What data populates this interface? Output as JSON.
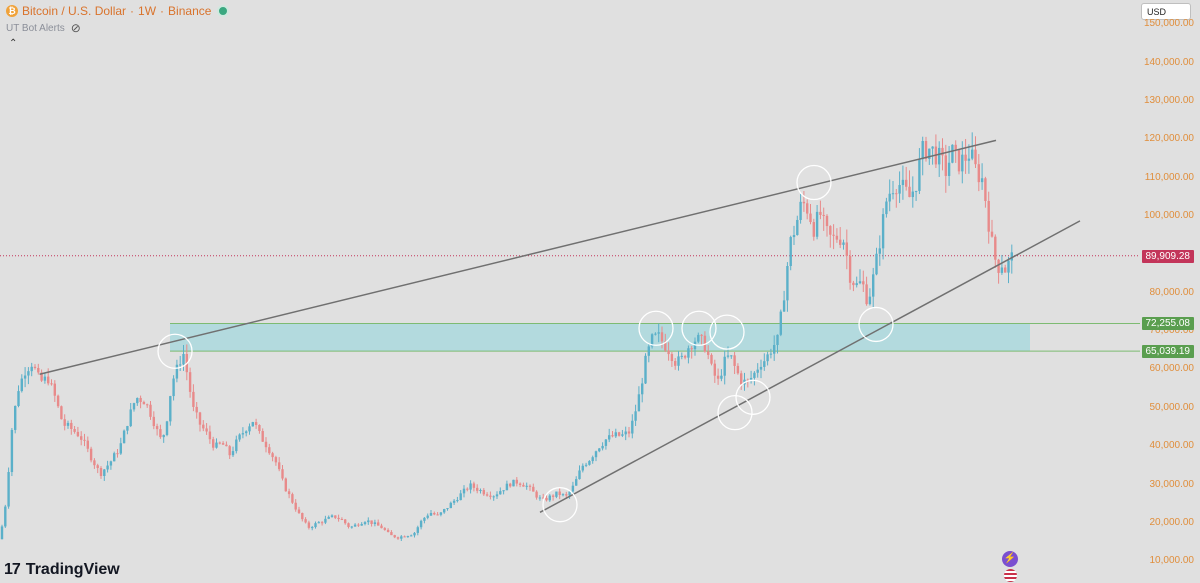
{
  "header": {
    "coin_symbol": "₿",
    "title": "Bitcoin / U.S. Dollar",
    "sep1": "·",
    "interval": "1W",
    "sep2": "·",
    "exchange": "Binance",
    "indicator": "UT Bot Alerts",
    "currency": "USD"
  },
  "price_ticks": [
    "150,000.00",
    "140,000.00",
    "130,000.00",
    "120,000.00",
    "110,000.00",
    "100,000.00",
    "80,000.00",
    "70,000.00",
    "60,000.00",
    "50,000.00",
    "40,000.00",
    "30,000.00",
    "20,000.00",
    "10,000.00"
  ],
  "price_tags": {
    "current": "89,909.28",
    "zone_top": "72,255.08",
    "zone_bottom": "65,039.19"
  },
  "brand": "TradingView",
  "colors": {
    "up": "#5bb0c9",
    "down": "#e88a8a",
    "zone": "#b3dade",
    "zone_line": "#7dbb72",
    "current": "#c3355a",
    "trendline": "#707070"
  },
  "chart_data": {
    "type": "candlestick",
    "symbol": "BTCUSD",
    "interval": "1W",
    "y_axis": {
      "min": 10000,
      "max": 150000
    },
    "current_price": 89909.28,
    "zone": {
      "top": 72255.08,
      "bottom": 65039.19
    },
    "trendlines": [
      {
        "name": "upper-resistance",
        "from": [
          0.033,
          59000
        ],
        "to": [
          0.83,
          120000
        ]
      },
      {
        "name": "lower-support",
        "from": [
          0.45,
          23000
        ],
        "to": [
          0.9,
          99000
        ]
      }
    ],
    "path": [
      [
        0,
        16000
      ],
      [
        6,
        26000
      ],
      [
        12,
        45000
      ],
      [
        18,
        55000
      ],
      [
        25,
        60000
      ],
      [
        32,
        62000
      ],
      [
        40,
        57000
      ],
      [
        48,
        58000
      ],
      [
        55,
        53000
      ],
      [
        63,
        46000
      ],
      [
        70,
        45000
      ],
      [
        80,
        43000
      ],
      [
        90,
        38000
      ],
      [
        100,
        33000
      ],
      [
        110,
        36000
      ],
      [
        120,
        40000
      ],
      [
        128,
        47000
      ],
      [
        136,
        53000
      ],
      [
        145,
        52000
      ],
      [
        152,
        48000
      ],
      [
        160,
        42000
      ],
      [
        165,
        44000
      ],
      [
        172,
        57000
      ],
      [
        178,
        61000
      ],
      [
        183,
        65000
      ],
      [
        188,
        58000
      ],
      [
        193,
        50000
      ],
      [
        200,
        46000
      ],
      [
        208,
        43000
      ],
      [
        215,
        40000
      ],
      [
        222,
        41000
      ],
      [
        230,
        38000
      ],
      [
        238,
        42000
      ],
      [
        246,
        45000
      ],
      [
        253,
        47000
      ],
      [
        260,
        43000
      ],
      [
        268,
        40000
      ],
      [
        276,
        36000
      ],
      [
        284,
        30000
      ],
      [
        292,
        26000
      ],
      [
        300,
        22000
      ],
      [
        308,
        19000
      ],
      [
        316,
        20000
      ],
      [
        325,
        21000
      ],
      [
        334,
        22000
      ],
      [
        342,
        21000
      ],
      [
        350,
        19000
      ],
      [
        358,
        20000
      ],
      [
        366,
        21000
      ],
      [
        374,
        20000
      ],
      [
        382,
        19000
      ],
      [
        390,
        17000
      ],
      [
        398,
        16500
      ],
      [
        406,
        17000
      ],
      [
        414,
        17500
      ],
      [
        422,
        21000
      ],
      [
        430,
        23000
      ],
      [
        438,
        22000
      ],
      [
        446,
        24000
      ],
      [
        454,
        26000
      ],
      [
        462,
        28000
      ],
      [
        470,
        30000
      ],
      [
        478,
        29000
      ],
      [
        486,
        28000
      ],
      [
        494,
        27500
      ],
      [
        502,
        29000
      ],
      [
        510,
        30500
      ],
      [
        518,
        31000
      ],
      [
        526,
        30000
      ],
      [
        534,
        28000
      ],
      [
        542,
        26000
      ],
      [
        550,
        27000
      ],
      [
        558,
        28000
      ],
      [
        566,
        27000
      ],
      [
        574,
        30000
      ],
      [
        582,
        35000
      ],
      [
        590,
        37000
      ],
      [
        598,
        40000
      ],
      [
        606,
        42000
      ],
      [
        614,
        43000
      ],
      [
        622,
        43000
      ],
      [
        630,
        44000
      ],
      [
        638,
        52000
      ],
      [
        646,
        63000
      ],
      [
        652,
        68000
      ],
      [
        658,
        69000
      ],
      [
        664,
        67000
      ],
      [
        670,
        65000
      ],
      [
        676,
        62000
      ],
      [
        682,
        63000
      ],
      [
        688,
        66000
      ],
      [
        694,
        68000
      ],
      [
        700,
        68000
      ],
      [
        706,
        66000
      ],
      [
        712,
        60000
      ],
      [
        718,
        57000
      ],
      [
        724,
        62000
      ],
      [
        730,
        64000
      ],
      [
        736,
        60000
      ],
      [
        742,
        57000
      ],
      [
        748,
        57000
      ],
      [
        754,
        59000
      ],
      [
        760,
        62000
      ],
      [
        766,
        63000
      ],
      [
        772,
        66000
      ],
      [
        778,
        68000
      ],
      [
        784,
        80000
      ],
      [
        790,
        93000
      ],
      [
        796,
        98000
      ],
      [
        802,
        104000
      ],
      [
        808,
        102000
      ],
      [
        814,
        97000
      ],
      [
        820,
        101000
      ],
      [
        826,
        96000
      ],
      [
        832,
        94000
      ],
      [
        838,
        95000
      ],
      [
        844,
        94000
      ],
      [
        850,
        85000
      ],
      [
        856,
        82000
      ],
      [
        862,
        83000
      ],
      [
        868,
        78000
      ],
      [
        874,
        85000
      ],
      [
        880,
        94000
      ],
      [
        886,
        104000
      ],
      [
        892,
        108000
      ],
      [
        898,
        109000
      ],
      [
        904,
        107000
      ],
      [
        910,
        105000
      ],
      [
        916,
        109000
      ],
      [
        922,
        117000
      ],
      [
        928,
        118000
      ],
      [
        934,
        117000
      ],
      [
        940,
        115000
      ],
      [
        946,
        112000
      ],
      [
        952,
        117000
      ],
      [
        958,
        114000
      ],
      [
        964,
        115000
      ],
      [
        970,
        117000
      ],
      [
        976,
        112000
      ],
      [
        982,
        110000
      ],
      [
        986,
        104000
      ],
      [
        990,
        96000
      ],
      [
        994,
        90000
      ],
      [
        998,
        87000
      ],
      [
        1002,
        88000
      ],
      [
        1006,
        86000
      ],
      [
        1010,
        89000
      ],
      [
        1014,
        89909
      ]
    ],
    "annotations": [
      {
        "type": "circle",
        "at": [
          175,
          65000
        ]
      },
      {
        "type": "circle",
        "at": [
          560,
          25000
        ]
      },
      {
        "type": "circle",
        "at": [
          656,
          71000
        ]
      },
      {
        "type": "circle",
        "at": [
          699,
          71000
        ]
      },
      {
        "type": "circle",
        "at": [
          727,
          70000
        ]
      },
      {
        "type": "circle",
        "at": [
          753,
          53000
        ]
      },
      {
        "type": "circle",
        "at": [
          735,
          49000
        ]
      },
      {
        "type": "circle",
        "at": [
          814,
          109000
        ]
      },
      {
        "type": "circle",
        "at": [
          876,
          72000
        ]
      }
    ]
  }
}
